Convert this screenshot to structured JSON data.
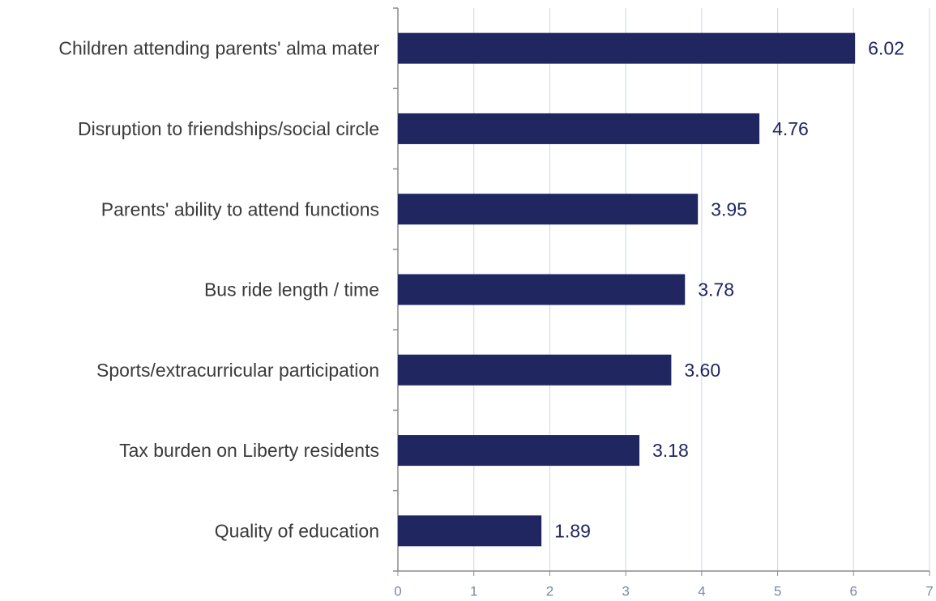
{
  "chart_data": {
    "type": "bar",
    "orientation": "horizontal",
    "categories": [
      "Children attending parents' alma mater",
      "Disruption to friendships/social circle",
      "Parents' ability to attend functions",
      "Bus ride length / time",
      "Sports/extracurricular participation",
      "Tax burden on Liberty residents",
      "Quality of education"
    ],
    "values": [
      6.02,
      4.76,
      3.95,
      3.78,
      3.6,
      3.18,
      1.89
    ],
    "value_labels": [
      "6.02",
      "4.76",
      "3.95",
      "3.78",
      "3.60",
      "3.18",
      "1.89"
    ],
    "color": "#1f2660",
    "xlim": [
      0,
      7
    ],
    "xticks": [
      0,
      1,
      2,
      3,
      4,
      5,
      6,
      7
    ],
    "grid": true
  }
}
